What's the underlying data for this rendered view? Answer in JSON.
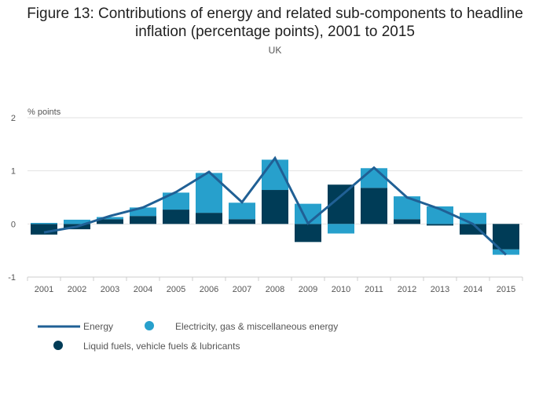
{
  "chart_data": {
    "type": "bar",
    "stacked": true,
    "title": "Figure 13: Contributions of energy and related sub-components to headline inflation (percentage points), 2001 to 2015",
    "subtitle": "UK",
    "ylabel": "% points",
    "ylim": [
      -1,
      2
    ],
    "yticks": [
      2,
      1,
      0,
      -1
    ],
    "grid": true,
    "legend_position": "bottom",
    "categories": [
      "2001",
      "2002",
      "2003",
      "2004",
      "2005",
      "2006",
      "2007",
      "2008",
      "2009",
      "2010",
      "2011",
      "2012",
      "2013",
      "2014",
      "2015"
    ],
    "series": [
      {
        "name": "Electricity, gas & miscellaneous energy",
        "type": "bar",
        "color": "#27a0cc",
        "values": [
          0.02,
          0.08,
          0.04,
          0.16,
          0.32,
          0.75,
          0.31,
          0.57,
          0.38,
          -0.18,
          0.37,
          0.43,
          0.33,
          0.21,
          -0.1
        ]
      },
      {
        "name": "Liquid fuels, vehicle fuels & lubricants",
        "type": "bar",
        "color": "#003c57",
        "values": [
          -0.2,
          -0.1,
          0.09,
          0.15,
          0.27,
          0.21,
          0.09,
          0.64,
          -0.34,
          0.74,
          0.68,
          0.09,
          -0.03,
          -0.2,
          -0.48
        ]
      },
      {
        "name": "Energy",
        "type": "line",
        "color": "#206095",
        "values": [
          -0.16,
          -0.05,
          0.15,
          0.31,
          0.6,
          0.98,
          0.41,
          1.24,
          0.01,
          0.53,
          1.06,
          0.5,
          0.28,
          0.0,
          -0.58
        ]
      }
    ]
  }
}
